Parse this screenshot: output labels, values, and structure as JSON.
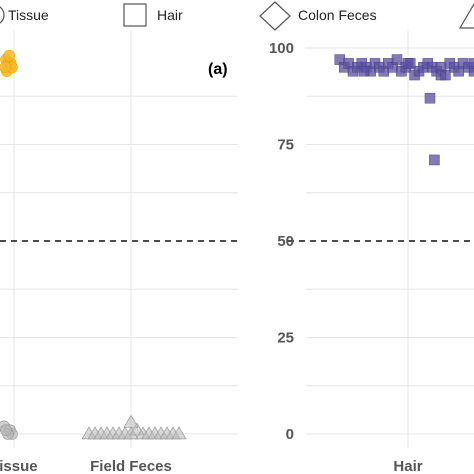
{
  "legend": {
    "items": [
      {
        "label": "Tissue",
        "shape": "circle-icon"
      },
      {
        "label": "Hair",
        "shape": "square-icon"
      },
      {
        "label": "Colon Feces",
        "shape": "diamond-icon"
      },
      {
        "label": "",
        "shape": "triangle-icon"
      }
    ]
  },
  "colors": {
    "tissue": "#f5b82e",
    "hair": "#5b4f9e",
    "feces": "#b8b8b8",
    "grid": "#e6e6e6",
    "reference_line": "#111111"
  },
  "chart_data": [
    {
      "type": "scatter",
      "panel_label": "(a)",
      "categories": [
        "Tissue",
        "Field Feces"
      ],
      "ylim": [
        -2,
        102
      ],
      "reference_line": 50,
      "grid": true,
      "series": [
        {
          "name": "Tissue",
          "category": "Tissue",
          "points": [
            [
              -0.2,
              97
            ],
            [
              -0.15,
              96
            ],
            [
              -0.1,
              95
            ],
            [
              -0.18,
              94
            ],
            [
              -0.08,
              96
            ],
            [
              -0.12,
              98
            ],
            [
              -0.05,
              95
            ],
            [
              -0.22,
              95
            ],
            [
              -0.25,
              2
            ],
            [
              -0.1,
              1
            ],
            [
              -0.05,
              0
            ],
            [
              -0.15,
              0
            ],
            [
              -0.2,
              1
            ]
          ]
        },
        {
          "name": "Field Feces",
          "category": "Field Feces",
          "points": [
            [
              -0.35,
              0
            ],
            [
              -0.3,
              0
            ],
            [
              -0.25,
              0
            ],
            [
              -0.2,
              0
            ],
            [
              -0.15,
              0
            ],
            [
              -0.1,
              0
            ],
            [
              -0.05,
              0
            ],
            [
              0.0,
              0
            ],
            [
              0.05,
              1
            ],
            [
              0.1,
              0
            ],
            [
              0.15,
              0
            ],
            [
              0.2,
              0
            ],
            [
              0.25,
              0
            ],
            [
              0.3,
              0
            ],
            [
              0.35,
              0
            ],
            [
              0.4,
              0
            ],
            [
              0.0,
              3
            ]
          ]
        }
      ]
    },
    {
      "type": "scatter",
      "categories": [
        "Hair"
      ],
      "yticks": [
        0,
        25,
        50,
        75,
        100
      ],
      "ylim": [
        -2,
        102
      ],
      "reference_line": 50,
      "grid": true,
      "series": [
        {
          "name": "Hair",
          "category": "Hair",
          "points": [
            [
              -0.62,
              97
            ],
            [
              -0.58,
              95
            ],
            [
              -0.54,
              96
            ],
            [
              -0.5,
              94
            ],
            [
              -0.46,
              95
            ],
            [
              -0.42,
              96
            ],
            [
              -0.38,
              95
            ],
            [
              -0.34,
              94
            ],
            [
              -0.3,
              96
            ],
            [
              -0.26,
              95
            ],
            [
              -0.22,
              94
            ],
            [
              -0.18,
              96
            ],
            [
              -0.14,
              95
            ],
            [
              -0.1,
              97
            ],
            [
              -0.06,
              94
            ],
            [
              -0.02,
              95
            ],
            [
              0.02,
              96
            ],
            [
              0.06,
              93
            ],
            [
              0.1,
              94
            ],
            [
              0.14,
              95
            ],
            [
              0.18,
              96
            ],
            [
              0.22,
              95
            ],
            [
              0.26,
              94
            ],
            [
              0.3,
              95
            ],
            [
              0.34,
              93
            ],
            [
              0.38,
              96
            ],
            [
              0.42,
              95
            ],
            [
              0.46,
              94
            ],
            [
              0.5,
              96
            ],
            [
              0.55,
              95
            ],
            [
              0.6,
              94
            ],
            [
              0.65,
              95
            ],
            [
              0.7,
              92
            ],
            [
              0.75,
              96
            ],
            [
              0.82,
              95
            ],
            [
              0.88,
              93
            ],
            [
              -0.4,
              94
            ],
            [
              0.0,
              96
            ],
            [
              0.3,
              93
            ],
            [
              0.6,
              96
            ],
            [
              0.2,
              87
            ],
            [
              0.24,
              71
            ]
          ]
        }
      ]
    }
  ]
}
